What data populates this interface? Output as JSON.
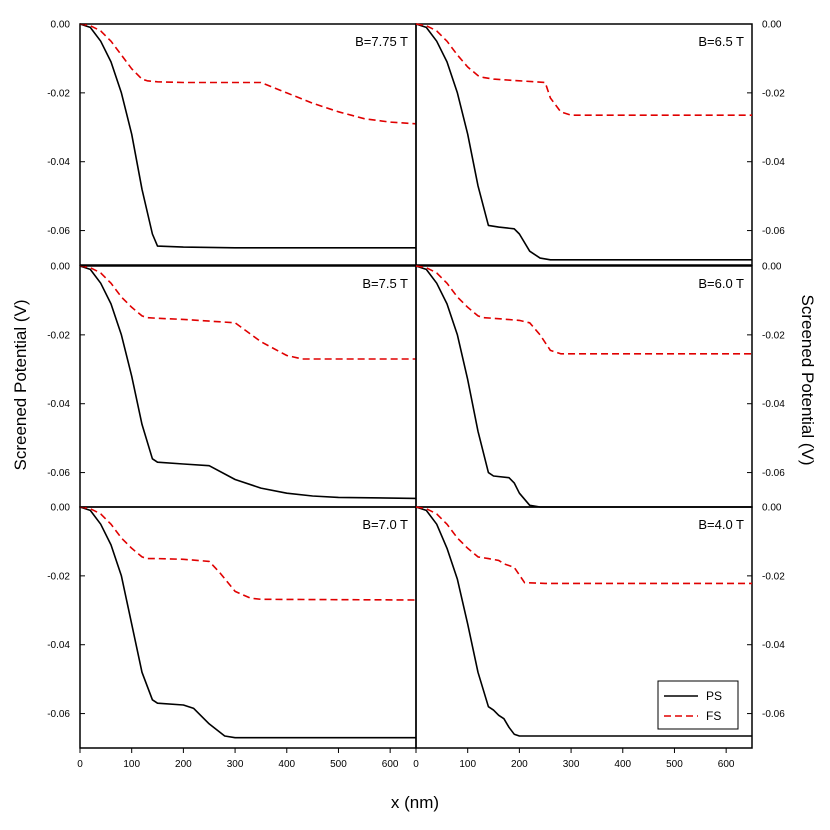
{
  "chart_data": {
    "type": "line",
    "ylabel_left": "Screened Potential (V)",
    "ylabel_right": "Screened Potential (V)",
    "xlabel": "x (nm)",
    "xlim": [
      0,
      650
    ],
    "ylim": [
      -0.07,
      0.0
    ],
    "x_ticks": [
      "0",
      "100",
      "200",
      "300",
      "400",
      "500",
      "600"
    ],
    "y_ticks": [
      "0.00",
      "-0.02",
      "-0.04",
      "-0.06"
    ],
    "legend": [
      {
        "name": "PS",
        "color": "#000000",
        "dash": "solid"
      },
      {
        "name": "FS",
        "color": "#e00000",
        "dash": "dashed"
      }
    ],
    "panels": [
      {
        "label": "B=7.75 T",
        "series": [
          {
            "name": "PS",
            "x": [
              0,
              20,
              40,
              60,
              80,
              100,
              120,
              140,
              150,
              200,
              300,
              400,
              500,
              650
            ],
            "y": [
              0,
              -0.001,
              -0.005,
              -0.011,
              -0.02,
              -0.032,
              -0.048,
              -0.061,
              -0.0645,
              -0.0648,
              -0.065,
              -0.065,
              -0.065,
              -0.065
            ]
          },
          {
            "name": "FS",
            "x": [
              0,
              20,
              40,
              60,
              80,
              100,
              120,
              130,
              150,
              200,
              300,
              350,
              400,
              450,
              500,
              550,
              600,
              650
            ],
            "y": [
              0,
              -0.0005,
              -0.002,
              -0.005,
              -0.009,
              -0.013,
              -0.016,
              -0.0165,
              -0.0168,
              -0.017,
              -0.017,
              -0.017,
              -0.02,
              -0.023,
              -0.0255,
              -0.0275,
              -0.0285,
              -0.029
            ]
          }
        ]
      },
      {
        "label": "B=6.5 T",
        "series": [
          {
            "name": "PS",
            "x": [
              0,
              20,
              40,
              60,
              80,
              100,
              120,
              140,
              160,
              190,
              200,
              220,
              240,
              260,
              650
            ],
            "y": [
              0,
              -0.001,
              -0.005,
              -0.011,
              -0.02,
              -0.032,
              -0.047,
              -0.0585,
              -0.059,
              -0.0595,
              -0.061,
              -0.066,
              -0.068,
              -0.0685,
              -0.0685
            ]
          },
          {
            "name": "FS",
            "x": [
              0,
              20,
              40,
              60,
              80,
              100,
              120,
              130,
              150,
              200,
              250,
              260,
              280,
              300,
              450,
              650
            ],
            "y": [
              0,
              -0.0005,
              -0.002,
              -0.005,
              -0.009,
              -0.0125,
              -0.015,
              -0.0155,
              -0.016,
              -0.0165,
              -0.017,
              -0.0215,
              -0.0255,
              -0.0265,
              -0.0265,
              -0.0265
            ]
          }
        ]
      },
      {
        "label": "B=7.5 T",
        "series": [
          {
            "name": "PS",
            "x": [
              0,
              20,
              40,
              60,
              80,
              100,
              120,
              140,
              150,
              200,
              250,
              300,
              350,
              400,
              450,
              500,
              650
            ],
            "y": [
              0,
              -0.001,
              -0.005,
              -0.011,
              -0.02,
              -0.032,
              -0.046,
              -0.056,
              -0.057,
              -0.0575,
              -0.058,
              -0.062,
              -0.0645,
              -0.066,
              -0.0668,
              -0.0672,
              -0.0675
            ]
          },
          {
            "name": "FS",
            "x": [
              0,
              20,
              40,
              60,
              80,
              100,
              120,
              130,
              150,
              200,
              250,
              300,
              350,
              400,
              430,
              450,
              650
            ],
            "y": [
              0,
              -0.0005,
              -0.002,
              -0.005,
              -0.009,
              -0.012,
              -0.0145,
              -0.015,
              -0.0152,
              -0.0155,
              -0.016,
              -0.0165,
              -0.022,
              -0.026,
              -0.027,
              -0.027,
              -0.027
            ]
          }
        ]
      },
      {
        "label": "B=6.0 T",
        "series": [
          {
            "name": "PS",
            "x": [
              0,
              20,
              40,
              60,
              80,
              100,
              120,
              140,
              150,
              180,
              190,
              200,
              220,
              240,
              650
            ],
            "y": [
              0,
              -0.001,
              -0.005,
              -0.011,
              -0.02,
              -0.033,
              -0.048,
              -0.06,
              -0.061,
              -0.0615,
              -0.063,
              -0.066,
              -0.0695,
              -0.07,
              -0.07
            ]
          },
          {
            "name": "FS",
            "x": [
              0,
              20,
              40,
              60,
              80,
              100,
              120,
              130,
              150,
              200,
              220,
              240,
              260,
              280,
              650
            ],
            "y": [
              0,
              -0.0005,
              -0.002,
              -0.005,
              -0.009,
              -0.012,
              -0.0145,
              -0.015,
              -0.0152,
              -0.0158,
              -0.0165,
              -0.02,
              -0.0245,
              -0.0255,
              -0.0255
            ]
          }
        ]
      },
      {
        "label": "B=7.0 T",
        "series": [
          {
            "name": "PS",
            "x": [
              0,
              20,
              40,
              60,
              80,
              100,
              120,
              140,
              150,
              200,
              220,
              250,
              280,
              300,
              350,
              400,
              650
            ],
            "y": [
              0,
              -0.001,
              -0.005,
              -0.011,
              -0.02,
              -0.034,
              -0.048,
              -0.056,
              -0.057,
              -0.0575,
              -0.0585,
              -0.063,
              -0.0665,
              -0.067,
              -0.067,
              -0.067,
              -0.067
            ]
          },
          {
            "name": "FS",
            "x": [
              0,
              20,
              40,
              60,
              80,
              100,
              120,
              130,
              150,
              200,
              250,
              270,
              300,
              330,
              350,
              650
            ],
            "y": [
              0,
              -0.0005,
              -0.002,
              -0.005,
              -0.009,
              -0.012,
              -0.0145,
              -0.015,
              -0.015,
              -0.0152,
              -0.0158,
              -0.019,
              -0.0245,
              -0.0265,
              -0.0268,
              -0.027
            ]
          }
        ]
      },
      {
        "label": "B=4.0 T",
        "series": [
          {
            "name": "PS",
            "x": [
              0,
              20,
              40,
              60,
              80,
              100,
              120,
              140,
              150,
              160,
              170,
              180,
              190,
              200,
              220,
              650
            ],
            "y": [
              0,
              -0.001,
              -0.005,
              -0.012,
              -0.021,
              -0.034,
              -0.048,
              -0.058,
              -0.059,
              -0.0605,
              -0.0615,
              -0.064,
              -0.066,
              -0.0665,
              -0.0665,
              -0.0665
            ]
          },
          {
            "name": "FS",
            "x": [
              0,
              20,
              40,
              60,
              80,
              100,
              120,
              140,
              160,
              170,
              190,
              210,
              250,
              650
            ],
            "y": [
              0,
              -0.0005,
              -0.002,
              -0.005,
              -0.009,
              -0.012,
              -0.0145,
              -0.015,
              -0.0155,
              -0.0165,
              -0.0175,
              -0.022,
              -0.0222,
              -0.0222
            ]
          }
        ]
      }
    ]
  }
}
